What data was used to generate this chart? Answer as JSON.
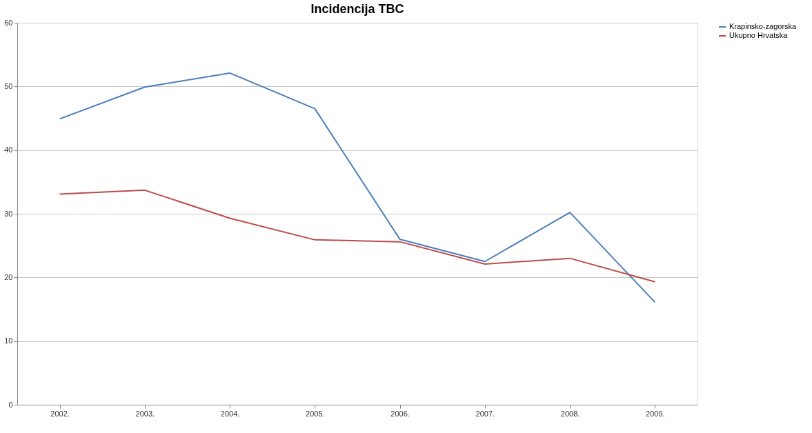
{
  "chart_data": {
    "type": "line",
    "title": "Incidencija TBC",
    "categories": [
      "2002.",
      "2003.",
      "2004.",
      "2005.",
      "2006.",
      "2007.",
      "2008.",
      "2009."
    ],
    "series": [
      {
        "name": "Krapinsko-zagorska",
        "color": "#4a7ebb",
        "values": [
          44.9,
          49.9,
          52.1,
          46.5,
          26.0,
          22.5,
          30.2,
          16.1
        ]
      },
      {
        "name": "Ukupno Hrvatska",
        "color": "#be4b48",
        "values": [
          33.1,
          33.7,
          29.3,
          25.9,
          25.6,
          22.1,
          23.0,
          19.3
        ]
      }
    ],
    "ylim": [
      0,
      60
    ],
    "yticks": [
      0,
      10,
      20,
      30,
      40,
      50,
      60
    ],
    "grid": "y",
    "legend": "right",
    "marker": "none",
    "line_style": "solid"
  }
}
